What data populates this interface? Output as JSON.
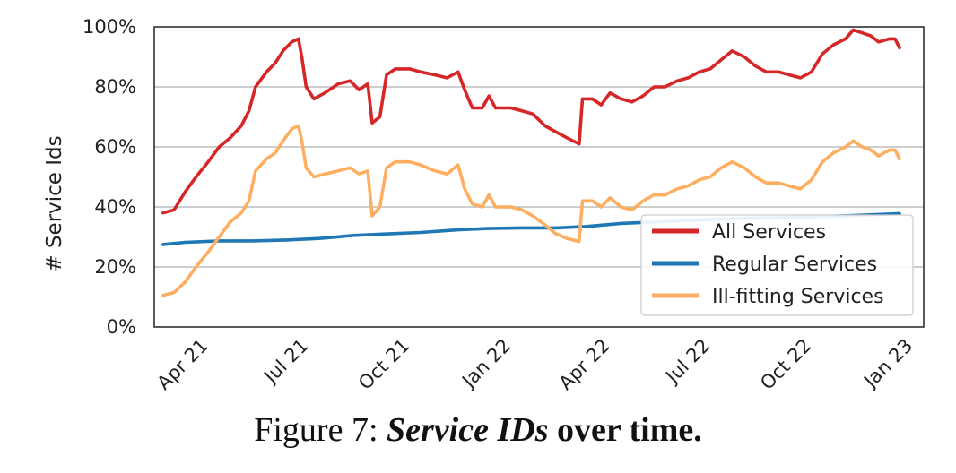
{
  "chart_data": {
    "type": "line",
    "title": "",
    "xlabel": "",
    "ylabel": "# Service Ids",
    "ylim": [
      0,
      100
    ],
    "yticks": [
      "0%",
      "20%",
      "40%",
      "60%",
      "80%",
      "100%"
    ],
    "xlim": [
      "2021-02-15",
      "2023-01-15"
    ],
    "xticks": [
      {
        "date": "2021-04-01",
        "label": "Apr 21"
      },
      {
        "date": "2021-07-01",
        "label": "Jul 21"
      },
      {
        "date": "2021-10-01",
        "label": "Oct 21"
      },
      {
        "date": "2022-01-01",
        "label": "Jan 22"
      },
      {
        "date": "2022-04-01",
        "label": "Apr 22"
      },
      {
        "date": "2022-07-01",
        "label": "Jul 22"
      },
      {
        "date": "2022-10-01",
        "label": "Oct 22"
      },
      {
        "date": "2023-01-01",
        "label": "Jan 23"
      }
    ],
    "grid": "horizontal",
    "legend_position": "bottom-right",
    "series": [
      {
        "name": "All Services",
        "color": "#d62728",
        "points": [
          [
            "2021-02-23",
            38
          ],
          [
            "2021-03-05",
            39
          ],
          [
            "2021-03-15",
            45
          ],
          [
            "2021-03-25",
            50
          ],
          [
            "2021-04-05",
            55
          ],
          [
            "2021-04-15",
            60
          ],
          [
            "2021-04-25",
            63
          ],
          [
            "2021-05-05",
            67
          ],
          [
            "2021-05-12",
            72
          ],
          [
            "2021-05-18",
            80
          ],
          [
            "2021-05-28",
            85
          ],
          [
            "2021-06-05",
            88
          ],
          [
            "2021-06-12",
            92
          ],
          [
            "2021-06-20",
            95
          ],
          [
            "2021-06-26",
            96
          ],
          [
            "2021-06-29",
            90
          ],
          [
            "2021-07-03",
            80
          ],
          [
            "2021-07-10",
            76
          ],
          [
            "2021-07-20",
            78
          ],
          [
            "2021-08-01",
            81
          ],
          [
            "2021-08-12",
            82
          ],
          [
            "2021-08-20",
            79
          ],
          [
            "2021-08-28",
            81
          ],
          [
            "2021-09-01",
            68
          ],
          [
            "2021-09-08",
            70
          ],
          [
            "2021-09-14",
            84
          ],
          [
            "2021-09-22",
            86
          ],
          [
            "2021-10-05",
            86
          ],
          [
            "2021-10-15",
            85
          ],
          [
            "2021-10-28",
            84
          ],
          [
            "2021-11-08",
            83
          ],
          [
            "2021-11-18",
            85
          ],
          [
            "2021-11-24",
            79
          ],
          [
            "2021-12-01",
            73
          ],
          [
            "2021-12-10",
            73
          ],
          [
            "2021-12-16",
            77
          ],
          [
            "2021-12-22",
            73
          ],
          [
            "2022-01-05",
            73
          ],
          [
            "2022-01-15",
            72
          ],
          [
            "2022-01-25",
            71
          ],
          [
            "2022-02-05",
            67
          ],
          [
            "2022-02-15",
            65
          ],
          [
            "2022-02-25",
            63
          ],
          [
            "2022-03-08",
            61
          ],
          [
            "2022-03-11",
            76
          ],
          [
            "2022-03-20",
            76
          ],
          [
            "2022-03-28",
            74
          ],
          [
            "2022-04-05",
            78
          ],
          [
            "2022-04-15",
            76
          ],
          [
            "2022-04-25",
            75
          ],
          [
            "2022-05-05",
            77
          ],
          [
            "2022-05-15",
            80
          ],
          [
            "2022-05-25",
            80
          ],
          [
            "2022-06-05",
            82
          ],
          [
            "2022-06-15",
            83
          ],
          [
            "2022-06-25",
            85
          ],
          [
            "2022-07-05",
            86
          ],
          [
            "2022-07-15",
            89
          ],
          [
            "2022-07-25",
            92
          ],
          [
            "2022-08-05",
            90
          ],
          [
            "2022-08-15",
            87
          ],
          [
            "2022-08-25",
            85
          ],
          [
            "2022-09-05",
            85
          ],
          [
            "2022-09-15",
            84
          ],
          [
            "2022-09-25",
            83
          ],
          [
            "2022-10-05",
            85
          ],
          [
            "2022-10-15",
            91
          ],
          [
            "2022-10-25",
            94
          ],
          [
            "2022-11-05",
            96
          ],
          [
            "2022-11-12",
            99
          ],
          [
            "2022-11-20",
            98
          ],
          [
            "2022-11-28",
            97
          ],
          [
            "2022-12-05",
            95
          ],
          [
            "2022-12-15",
            96
          ],
          [
            "2022-12-20",
            96
          ],
          [
            "2022-12-24",
            93
          ]
        ]
      },
      {
        "name": "Regular Services",
        "color": "#1f77b4",
        "points": [
          [
            "2021-02-23",
            27.5
          ],
          [
            "2021-03-15",
            28.2
          ],
          [
            "2021-04-15",
            28.7
          ],
          [
            "2021-05-15",
            28.7
          ],
          [
            "2021-06-15",
            29.0
          ],
          [
            "2021-07-15",
            29.5
          ],
          [
            "2021-08-15",
            30.5
          ],
          [
            "2021-09-15",
            31.0
          ],
          [
            "2021-10-15",
            31.5
          ],
          [
            "2021-11-15",
            32.3
          ],
          [
            "2021-12-15",
            32.8
          ],
          [
            "2022-01-15",
            33.0
          ],
          [
            "2022-02-15",
            33.0
          ],
          [
            "2022-03-15",
            33.5
          ],
          [
            "2022-04-15",
            34.5
          ],
          [
            "2022-05-15",
            35.0
          ],
          [
            "2022-06-15",
            35.5
          ],
          [
            "2022-07-15",
            36.0
          ],
          [
            "2022-08-15",
            36.3
          ],
          [
            "2022-09-15",
            36.5
          ],
          [
            "2022-10-15",
            36.8
          ],
          [
            "2022-11-15",
            37.2
          ],
          [
            "2022-12-24",
            37.8
          ]
        ]
      },
      {
        "name": "Ill-fitting Services",
        "color": "#fdae61",
        "points": [
          [
            "2021-02-23",
            10.5
          ],
          [
            "2021-03-05",
            11.5
          ],
          [
            "2021-03-15",
            15
          ],
          [
            "2021-03-25",
            20
          ],
          [
            "2021-04-05",
            25
          ],
          [
            "2021-04-15",
            30
          ],
          [
            "2021-04-25",
            35
          ],
          [
            "2021-05-05",
            38
          ],
          [
            "2021-05-12",
            42
          ],
          [
            "2021-05-18",
            52
          ],
          [
            "2021-05-28",
            56
          ],
          [
            "2021-06-05",
            58
          ],
          [
            "2021-06-12",
            62
          ],
          [
            "2021-06-20",
            66
          ],
          [
            "2021-06-26",
            67
          ],
          [
            "2021-06-29",
            62
          ],
          [
            "2021-07-03",
            53
          ],
          [
            "2021-07-10",
            50
          ],
          [
            "2021-07-20",
            51
          ],
          [
            "2021-08-01",
            52
          ],
          [
            "2021-08-12",
            53
          ],
          [
            "2021-08-20",
            51
          ],
          [
            "2021-08-28",
            52
          ],
          [
            "2021-09-01",
            37
          ],
          [
            "2021-09-08",
            40
          ],
          [
            "2021-09-14",
            53
          ],
          [
            "2021-09-22",
            55
          ],
          [
            "2021-10-05",
            55
          ],
          [
            "2021-10-15",
            54
          ],
          [
            "2021-10-28",
            52
          ],
          [
            "2021-11-08",
            51
          ],
          [
            "2021-11-18",
            54
          ],
          [
            "2021-11-24",
            46
          ],
          [
            "2021-12-01",
            41
          ],
          [
            "2021-12-10",
            40
          ],
          [
            "2021-12-16",
            44
          ],
          [
            "2021-12-22",
            40
          ],
          [
            "2022-01-05",
            40
          ],
          [
            "2022-01-15",
            39
          ],
          [
            "2022-01-25",
            37
          ],
          [
            "2022-02-05",
            34
          ],
          [
            "2022-02-15",
            31
          ],
          [
            "2022-02-25",
            29.5
          ],
          [
            "2022-03-08",
            28.5
          ],
          [
            "2022-03-11",
            42
          ],
          [
            "2022-03-20",
            42
          ],
          [
            "2022-03-28",
            40
          ],
          [
            "2022-04-05",
            43
          ],
          [
            "2022-04-15",
            40
          ],
          [
            "2022-04-25",
            39
          ],
          [
            "2022-05-05",
            42
          ],
          [
            "2022-05-15",
            44
          ],
          [
            "2022-05-25",
            44
          ],
          [
            "2022-06-05",
            46
          ],
          [
            "2022-06-15",
            47
          ],
          [
            "2022-06-25",
            49
          ],
          [
            "2022-07-05",
            50
          ],
          [
            "2022-07-15",
            53
          ],
          [
            "2022-07-25",
            55
          ],
          [
            "2022-08-05",
            53
          ],
          [
            "2022-08-15",
            50
          ],
          [
            "2022-08-25",
            48
          ],
          [
            "2022-09-05",
            48
          ],
          [
            "2022-09-15",
            47
          ],
          [
            "2022-09-25",
            46
          ],
          [
            "2022-10-05",
            49
          ],
          [
            "2022-10-15",
            55
          ],
          [
            "2022-10-25",
            58
          ],
          [
            "2022-11-05",
            60
          ],
          [
            "2022-11-12",
            62
          ],
          [
            "2022-11-20",
            60
          ],
          [
            "2022-11-28",
            59
          ],
          [
            "2022-12-05",
            57
          ],
          [
            "2022-12-15",
            59
          ],
          [
            "2022-12-20",
            59
          ],
          [
            "2022-12-24",
            56
          ]
        ]
      }
    ]
  },
  "caption": {
    "prefix": "Figure 7: ",
    "emphasis": "Service IDs",
    "suffix": " over time."
  }
}
